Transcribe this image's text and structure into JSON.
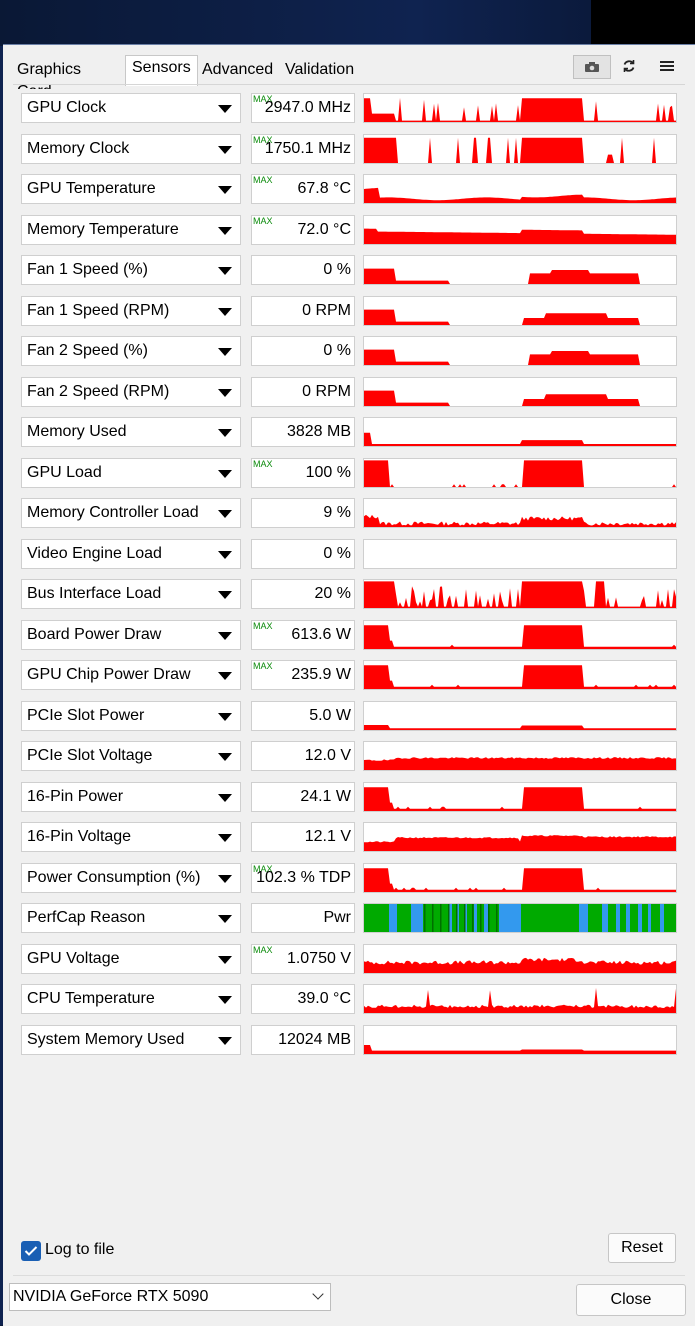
{
  "tabs": [
    "Graphics Card",
    "Sensors",
    "Advanced",
    "Validation"
  ],
  "active_tab": "Sensors",
  "toolbar": {
    "camera": "camera-icon",
    "refresh": "refresh-icon",
    "menu": "hamburger-menu-icon"
  },
  "colors": {
    "graph_red": "#ff0000",
    "perfcap_green": "#00aa00",
    "perfcap_blue": "#3399ee",
    "max_green": "#0a8a0a"
  },
  "sensors": [
    {
      "name": "GPU Clock",
      "value": "2947.0 MHz",
      "max": true,
      "shape": "spiky"
    },
    {
      "name": "Memory Clock",
      "value": "1750.1 MHz",
      "max": true,
      "shape": "blocks"
    },
    {
      "name": "GPU Temperature",
      "value": "67.8 °C",
      "max": true,
      "shape": "temp"
    },
    {
      "name": "Memory Temperature",
      "value": "72.0 °C",
      "max": true,
      "shape": "memtemp"
    },
    {
      "name": "Fan 1 Speed (%)",
      "value": "0 %",
      "max": false,
      "shape": "fan"
    },
    {
      "name": "Fan 1 Speed (RPM)",
      "value": "0 RPM",
      "max": false,
      "shape": "fanrpm"
    },
    {
      "name": "Fan 2 Speed (%)",
      "value": "0 %",
      "max": false,
      "shape": "fan"
    },
    {
      "name": "Fan 2 Speed (RPM)",
      "value": "0 RPM",
      "max": false,
      "shape": "fanrpm"
    },
    {
      "name": "Memory Used",
      "value": "3828 MB",
      "max": false,
      "shape": "memused"
    },
    {
      "name": "GPU Load",
      "value": "100 %",
      "max": true,
      "shape": "load"
    },
    {
      "name": "Memory Controller Load",
      "value": "9 %",
      "max": false,
      "shape": "noise"
    },
    {
      "name": "Video Engine Load",
      "value": "0 %",
      "max": false,
      "shape": "empty"
    },
    {
      "name": "Bus Interface Load",
      "value": "20 %",
      "max": false,
      "shape": "bus"
    },
    {
      "name": "Board Power Draw",
      "value": "613.6 W",
      "max": true,
      "shape": "power"
    },
    {
      "name": "GPU Chip Power Draw",
      "value": "235.9 W",
      "max": true,
      "shape": "power"
    },
    {
      "name": "PCIe Slot Power",
      "value": "5.0 W",
      "max": false,
      "shape": "lowflat"
    },
    {
      "name": "PCIe Slot Voltage",
      "value": "12.0 V",
      "max": false,
      "shape": "volt"
    },
    {
      "name": "16-Pin Power",
      "value": "24.1 W",
      "max": false,
      "shape": "power"
    },
    {
      "name": "16-Pin Voltage",
      "value": "12.1 V",
      "max": false,
      "shape": "volt2"
    },
    {
      "name": "Power Consumption (%)",
      "value": "102.3 % TDP",
      "max": true,
      "shape": "power"
    },
    {
      "name": "PerfCap Reason",
      "value": "Pwr",
      "max": false,
      "shape": "perfcap"
    },
    {
      "name": "GPU Voltage",
      "value": "1.0750 V",
      "max": true,
      "shape": "gvolt"
    },
    {
      "name": "CPU Temperature",
      "value": "39.0 °C",
      "max": false,
      "shape": "cpu"
    },
    {
      "name": "System Memory Used",
      "value": "12024 MB",
      "max": false,
      "shape": "sysmem"
    }
  ],
  "max_label": "MAX",
  "log_to_file": {
    "label": "Log to file",
    "checked": true
  },
  "reset_label": "Reset",
  "gpu_select": "NVIDIA GeForce RTX 5090",
  "close_label": "Close"
}
